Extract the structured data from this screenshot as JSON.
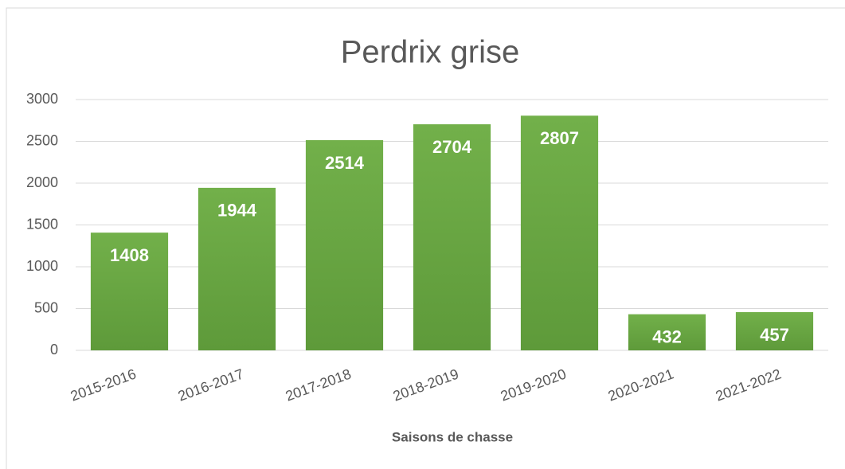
{
  "chart_data": {
    "type": "bar",
    "title": "Perdrix grise",
    "x_label": "Saisons de chasse",
    "categories": [
      "2015-2016",
      "2016-2017",
      "2017-2018",
      "2018-2019",
      "2019-2020",
      "2020-2021",
      "2021-2022"
    ],
    "values": [
      1408,
      1944,
      2514,
      2704,
      2807,
      432,
      457
    ],
    "color": "#6aa843",
    "ylim": [
      0,
      3000
    ],
    "yticks": [
      0,
      500,
      1000,
      1500,
      2000,
      2500,
      3000
    ],
    "grid": true
  }
}
